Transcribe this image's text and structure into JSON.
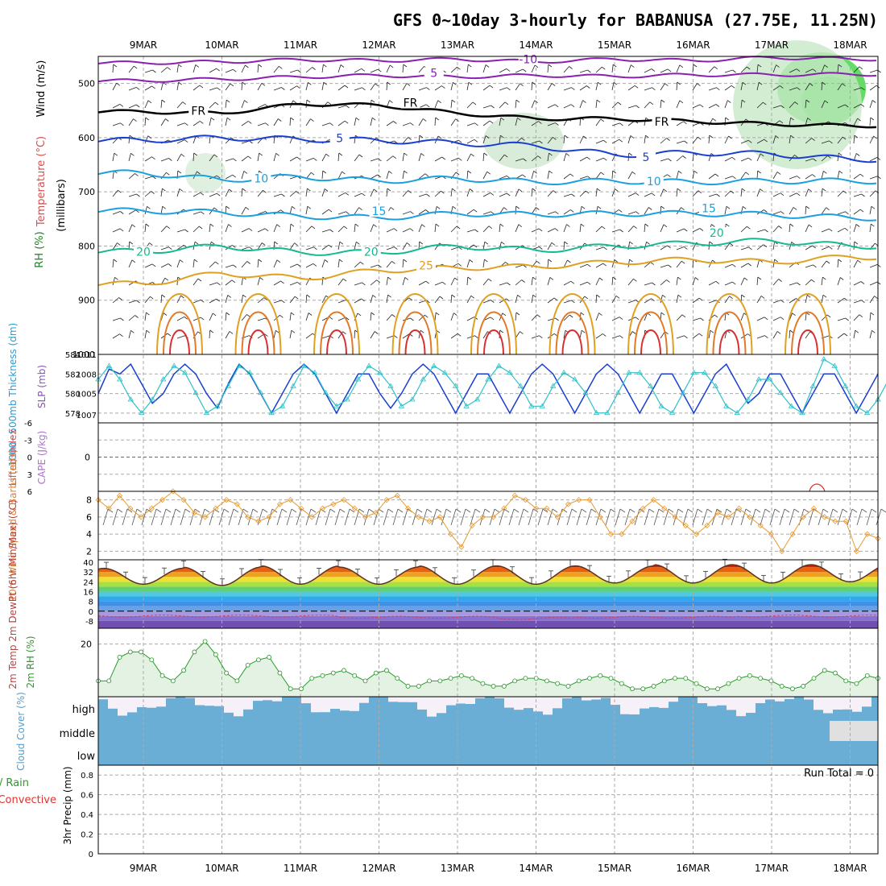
{
  "title": "GFS 0~10day 3-hourly for BABANUSA (27.75E, 11.25N)",
  "colors": {
    "frame": "#000000",
    "grid": "#aaaaaa",
    "rh_green": "#22cc22",
    "temp_purple": "#8a20b0",
    "temp_blue": "#1a3fd0",
    "temp_cyan": "#1aa0e0",
    "temp_teal": "#16b890",
    "temp_orange": "#e0a020",
    "temp_red": "#d83030",
    "thickness": "#1a3fd0",
    "slp": "#30c0c8",
    "wind_speed": "#e89a30",
    "rh2m": "#2c9a2c",
    "rh2m_fill": "#e3f2e3",
    "cloud_blue": "#6aaed6",
    "cloud_gray": "#e0e0e0",
    "cloud_light": "#f6f0f8"
  },
  "chart_data": {
    "type": "meteogram",
    "days": [
      "9MAR",
      "10MAR",
      "11MAR",
      "12MAR",
      "13MAR",
      "14MAR",
      "15MAR",
      "16MAR",
      "17MAR",
      "18MAR"
    ],
    "panels": {
      "upper_air": {
        "ylabel_wind": "Wind (m/s)",
        "ylabel_temp": "Temperature (°C)",
        "ylabel_rh": "RH (%)",
        "ylabel_units": "(millibars)",
        "y_ticks": [
          "500",
          "600",
          "700",
          "800",
          "900",
          "1000"
        ],
        "ylim": [
          450,
          1000
        ],
        "isotherm_labels": [
          {
            "text": "-10",
            "day": 4.9,
            "p": 460
          },
          {
            "text": "5",
            "day": 3.7,
            "p": 485
          },
          {
            "text": "FR",
            "day": 0.7,
            "p": 555
          },
          {
            "text": "FR",
            "day": 3.4,
            "p": 540
          },
          {
            "text": "FR",
            "day": 6.6,
            "p": 575
          },
          {
            "text": "5",
            "day": 2.5,
            "p": 605
          },
          {
            "text": "5",
            "day": 6.4,
            "p": 640
          },
          {
            "text": "10",
            "day": 1.5,
            "p": 680
          },
          {
            "text": "10",
            "day": 6.5,
            "p": 685
          },
          {
            "text": "15",
            "day": 3.0,
            "p": 740
          },
          {
            "text": "15",
            "day": 7.2,
            "p": 735
          },
          {
            "text": "20",
            "day": 0.0,
            "p": 815
          },
          {
            "text": "20",
            "day": 2.9,
            "p": 815
          },
          {
            "text": "20",
            "day": 7.3,
            "p": 780
          },
          {
            "text": "25",
            "day": 3.6,
            "p": 840
          }
        ],
        "isotherms": [
          {
            "name": "-10",
            "color": "#8a20b0",
            "p": [
              462,
              460,
              456,
              458,
              455,
              460,
              455,
              458,
              452,
              455
            ]
          },
          {
            "name": "-5",
            "color": "#8a20b0",
            "p": [
              495,
              492,
              488,
              485,
              488,
              485,
              487,
              484,
              484,
              483
            ]
          },
          {
            "name": "FR",
            "color": "#000000",
            "p": [
              552,
              555,
              538,
              540,
              555,
              565,
              565,
              570,
              575,
              578
            ]
          },
          {
            "name": "5",
            "color": "#1a3fd0",
            "p": [
              605,
              600,
              603,
              605,
              610,
              615,
              632,
              628,
              630,
              640
            ]
          },
          {
            "name": "10",
            "color": "#1aa0e0",
            "p": [
              665,
              678,
              672,
              680,
              675,
              682,
              680,
              682,
              680,
              680
            ]
          },
          {
            "name": "15",
            "color": "#1aa0e0",
            "p": [
              735,
              738,
              745,
              748,
              740,
              742,
              740,
              740,
              742,
              748
            ]
          },
          {
            "name": "20",
            "color": "#16b890",
            "p": [
              810,
              800,
              812,
              812,
              800,
              808,
              800,
              795,
              790,
              800
            ]
          },
          {
            "name": "25",
            "color": "#e0a020",
            "p": [
              870,
              850,
              860,
              845,
              840,
              838,
              830,
              825,
              830,
              820
            ]
          }
        ]
      },
      "thickness_slp": {
        "ylabel_thickness": "1000~500mb Thickness (dm)",
        "ylabel_slp": "SLP (mb)",
        "thickness_ticks": [
          "584",
          "582",
          "580",
          "578"
        ],
        "slp_ticks": [
          "1011",
          "1008",
          "1005",
          "1007"
        ],
        "thickness_lim": [
          577,
          584
        ],
        "thickness": [
          580,
          582.5,
          582,
          583,
          581,
          579,
          580,
          582,
          583,
          582,
          580,
          578.5,
          581,
          583,
          582,
          580,
          578,
          580,
          582,
          583,
          582,
          580,
          578,
          580,
          582,
          582,
          580,
          578.5,
          580,
          582,
          583,
          582,
          580,
          578,
          580,
          582,
          582,
          580,
          578,
          580,
          582,
          583,
          582,
          580,
          578,
          580,
          582,
          583,
          582,
          580,
          578,
          580,
          582,
          582,
          580,
          578,
          580,
          582,
          583,
          581,
          579,
          580,
          582,
          582,
          580,
          578,
          580,
          582,
          582,
          580,
          578,
          580,
          582
        ],
        "slp": [
          1009,
          1011,
          1009,
          1006,
          1004,
          1006,
          1009,
          1011,
          1010,
          1007,
          1004,
          1005,
          1008,
          1011,
          1010,
          1007,
          1004,
          1005,
          1008,
          1011,
          1010,
          1007,
          1005,
          1006,
          1009,
          1011,
          1010,
          1008,
          1005,
          1006,
          1009,
          1011,
          1010,
          1008,
          1005,
          1006,
          1009,
          1011,
          1010,
          1008,
          1005,
          1005,
          1008,
          1010,
          1009,
          1007,
          1004,
          1004,
          1007,
          1010,
          1010,
          1008,
          1005,
          1004,
          1007,
          1010,
          1010,
          1008,
          1005,
          1004,
          1006,
          1009,
          1009,
          1007,
          1005,
          1004,
          1008,
          1012,
          1011,
          1008,
          1005,
          1004,
          1006,
          1009
        ]
      },
      "cape_li": {
        "ylabel_li": "Lifted Index",
        "ylabel_cape": "CAPE (J/kg)",
        "y_ticks": [
          "-6",
          "-3",
          "0",
          "3",
          "6"
        ],
        "ylim": [
          -6,
          6
        ],
        "reference": 0
      },
      "wind10m": {
        "ylabel": "10m Wind Speed & Barbs (m/s)",
        "y_ticks": [
          "8",
          "6",
          "4",
          "2"
        ],
        "ylim": [
          1,
          9
        ],
        "speed": [
          8,
          7,
          8.5,
          7,
          6,
          7,
          8,
          9,
          8,
          6.5,
          6,
          7,
          8,
          7.5,
          6,
          5.5,
          6,
          7.5,
          8,
          7,
          6,
          7,
          7.5,
          8,
          7,
          6,
          6.5,
          8,
          8.5,
          7,
          6,
          5.5,
          6,
          4,
          2.5,
          5,
          6,
          6,
          7,
          8.5,
          8,
          7,
          7,
          6,
          7.5,
          8,
          8,
          6,
          4,
          4,
          5.5,
          7,
          8,
          7,
          6,
          5,
          4,
          5,
          6.5,
          6,
          7,
          6,
          5,
          4,
          2,
          4,
          6,
          7,
          6,
          5.5,
          5.5,
          2,
          4,
          3.5
        ]
      },
      "temp2m": {
        "ylabel": "2m Temp 2m DewPt (6hr Min/Max) (°C)",
        "y_ticks": [
          "40",
          "32",
          "24",
          "16",
          "8",
          "0",
          "-8"
        ],
        "ylim": [
          -14,
          42
        ],
        "temp_max": [
          35,
          36,
          37,
          36,
          37,
          37,
          37,
          38,
          38,
          38
        ],
        "temp_min": [
          22,
          21,
          22,
          22,
          22,
          22,
          23,
          23,
          23,
          24
        ],
        "dewpoint": [
          -4,
          -4,
          -4,
          -5,
          -5,
          -6,
          -5,
          -5,
          -4,
          -4
        ]
      },
      "rh2m": {
        "ylabel": "2m RH (%)",
        "y_ticks": [
          "20"
        ],
        "ylim": [
          0,
          26
        ],
        "values": [
          6,
          6,
          15,
          17,
          17,
          14,
          8,
          6,
          10,
          17,
          21,
          16,
          9,
          6,
          12,
          14,
          15,
          9,
          3,
          3,
          7,
          8,
          9,
          10,
          8,
          6,
          9,
          10,
          7,
          4,
          4,
          6,
          6,
          7,
          8,
          7,
          5,
          4,
          4,
          6,
          7,
          7,
          6,
          5,
          4,
          6,
          7,
          8,
          7,
          5,
          3,
          3,
          4,
          6,
          7,
          7,
          5,
          3,
          3,
          5,
          7,
          8,
          7,
          6,
          4,
          3,
          4,
          7,
          10,
          9,
          6,
          5,
          8,
          7
        ]
      },
      "cloud": {
        "ylabel": "Cloud Cover (%)",
        "levels": [
          "high",
          "middle",
          "low"
        ]
      },
      "precip": {
        "ylabel_a": "Total / Rain",
        "ylabel_b": "Convective",
        "ylabel_c": "3hr Precip (mm)",
        "y_ticks": [
          "0.8",
          "0.6",
          "0.4",
          "0.2",
          "0"
        ],
        "ylim": [
          0,
          0.9
        ],
        "run_total_label": "Run Total = 0"
      }
    }
  }
}
